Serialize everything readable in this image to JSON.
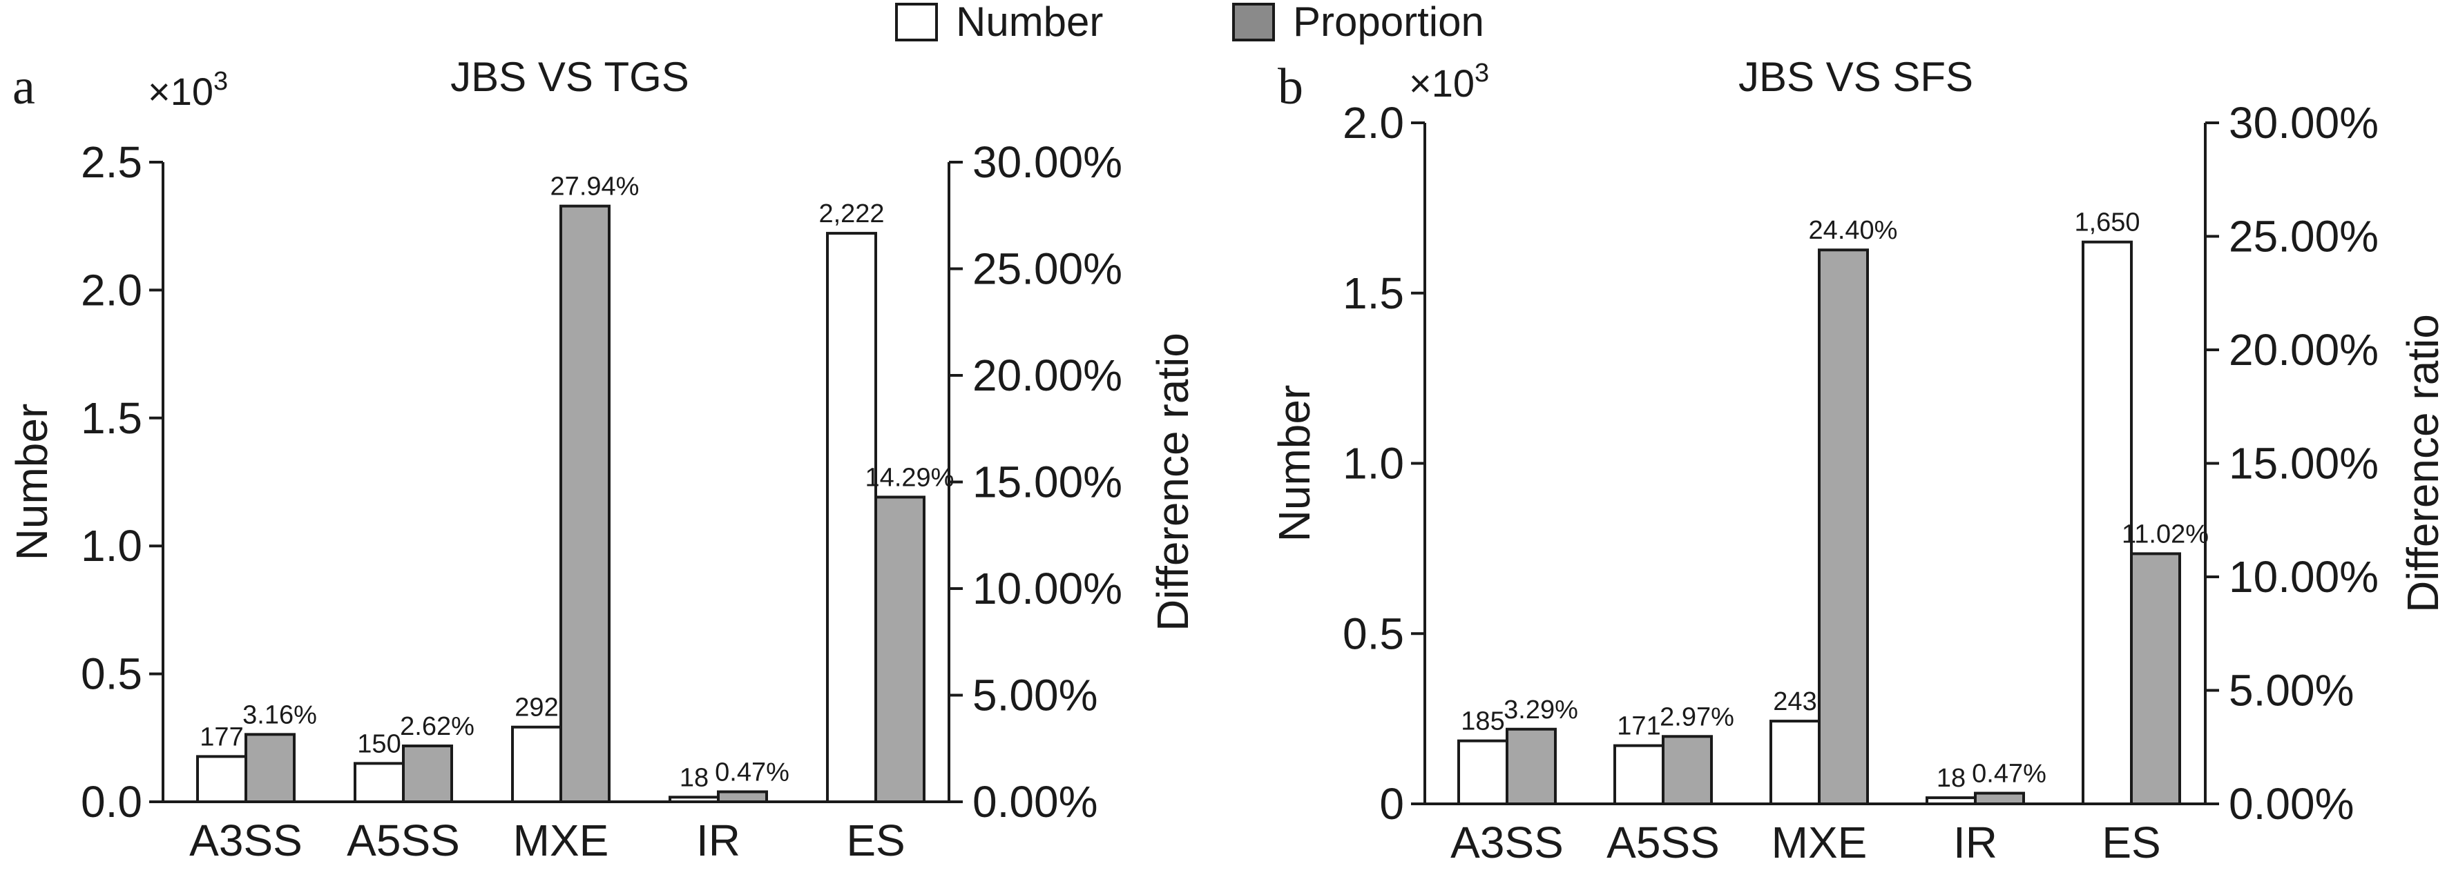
{
  "legend": {
    "number_label": "Number",
    "proportion_label": "Proportion",
    "number_color": "#ffffff",
    "proportion_color": "#a6a6a6"
  },
  "chart_data": [
    {
      "panel": "a",
      "type": "bar",
      "title": "JBS VS TGS",
      "multiplier": "×10",
      "multiplier_exp": "3",
      "categories": [
        "A3SS",
        "A5SS",
        "MXE",
        "IR",
        "ES"
      ],
      "ylabel": "Number",
      "y2label": "Difference  ratio",
      "ylim": [
        0,
        2.5
      ],
      "yticks": [
        "0.0",
        "0.5",
        "1.0",
        "1.5",
        "2.0",
        "2.5"
      ],
      "y2lim": [
        0,
        30
      ],
      "y2ticks": [
        "0.00%",
        "5.00%",
        "10.00%",
        "15.00%",
        "20.00%",
        "25.00%",
        "30.00%"
      ],
      "series": [
        {
          "name": "Number",
          "axis": "left",
          "values": [
            0.177,
            0.15,
            0.292,
            0.018,
            2.222
          ],
          "labels": [
            "177",
            "150",
            "292",
            "18",
            "2,222"
          ]
        },
        {
          "name": "Proportion",
          "axis": "right",
          "values": [
            3.16,
            2.62,
            27.94,
            0.47,
            14.29
          ],
          "labels": [
            "3.16%",
            "2.62%",
            "27.94%",
            "0.47%",
            "14.29%"
          ]
        }
      ]
    },
    {
      "panel": "b",
      "type": "bar",
      "title": "JBS VS SFS",
      "multiplier": "×10",
      "multiplier_exp": "3",
      "categories": [
        "A3SS",
        "A5SS",
        "MXE",
        "IR",
        "ES"
      ],
      "ylabel": "Number",
      "y2label": "Difference  ratio",
      "ylim": [
        0,
        2.0
      ],
      "yticks": [
        "0",
        "0.5",
        "1.0",
        "1.5",
        "2.0"
      ],
      "y2lim": [
        0,
        30
      ],
      "y2ticks": [
        "0.00%",
        "5.00%",
        "10.00%",
        "15.00%",
        "20.00%",
        "25.00%",
        "30.00%"
      ],
      "series": [
        {
          "name": "Number",
          "axis": "left",
          "values": [
            0.185,
            0.171,
            0.243,
            0.018,
            1.65
          ],
          "labels": [
            "185",
            "171",
            "243",
            "18",
            "1,650"
          ]
        },
        {
          "name": "Proportion",
          "axis": "right",
          "values": [
            3.29,
            2.97,
            24.4,
            0.47,
            11.02
          ],
          "labels": [
            "3.29%",
            "2.97%",
            "24.40%",
            "0.47%",
            "11.02%"
          ]
        }
      ]
    }
  ]
}
